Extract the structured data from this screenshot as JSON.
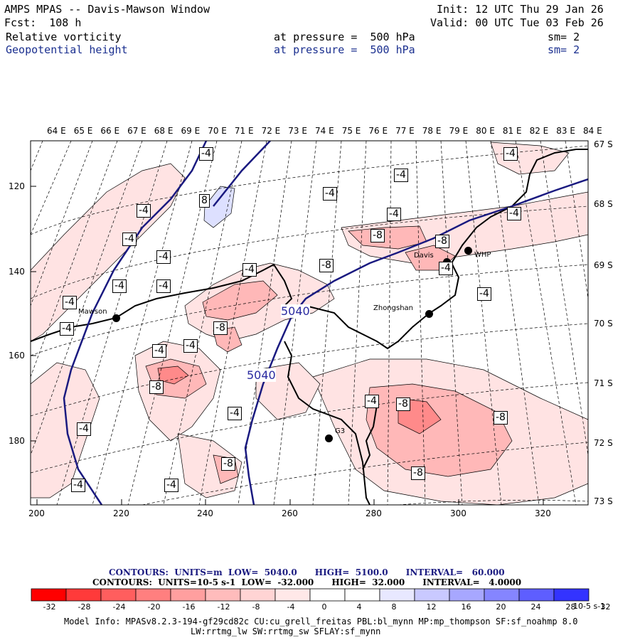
{
  "header": {
    "title": "AMPS MPAS -- Davis-Mawson Window",
    "init": "Init: 12 UTC Thu 29 Jan 26",
    "fcst": "Fcst:  108 h",
    "valid": "Valid: 00 UTC Tue 03 Feb 26",
    "field1": {
      "name": "Relative vorticity",
      "pressure": "at pressure =  500 hPa",
      "sm": "sm= 2"
    },
    "field2": {
      "name": "Geopotential height",
      "pressure": "at pressure =  500 hPa",
      "sm": "sm= 2"
    }
  },
  "axes": {
    "top_lon_labels": [
      "64 E",
      "65 E",
      "66 E",
      "67 E",
      "68 E",
      "69 E",
      "70 E",
      "71 E",
      "72 E",
      "73 E",
      "74 E",
      "75 E",
      "76 E",
      "77 E",
      "78 E",
      "79 E",
      "80 E",
      "81 E",
      "82 E",
      "83 E",
      "84 E"
    ],
    "right_lat_labels": [
      "67 S",
      "68 S",
      "69 S",
      "70 S",
      "71 S",
      "72 S",
      "73 S"
    ],
    "bottom_x_labels": [
      "200",
      "220",
      "240",
      "260",
      "280",
      "300",
      "320"
    ],
    "left_y_labels": [
      "120",
      "140",
      "160",
      "180"
    ]
  },
  "stations": [
    {
      "name": "Mawson"
    },
    {
      "name": "Davis"
    },
    {
      "name": "WHP"
    },
    {
      "name": "Zhongshan"
    },
    {
      "name": "G3"
    }
  ],
  "contour_labels": {
    "height": [
      "5040",
      "5040"
    ],
    "vorticity": [
      "-4",
      "-4",
      "-4",
      "-4",
      "-4",
      "-4",
      "-4",
      "-4",
      "-4",
      "-4",
      "-4",
      "-4",
      "-4",
      "-4",
      "-4",
      "-4",
      "-4",
      "-4",
      "-4",
      "-4",
      "-4",
      "-4",
      "-4",
      "-8",
      "-8",
      "-8",
      "-8",
      "-8",
      "-8",
      "-8",
      "-8",
      "-8",
      "8"
    ]
  },
  "legend": {
    "height_line": "CONTOURS:  UNITS=m  LOW=  5040.0      HIGH=  5100.0      INTERVAL=   60.000",
    "vort_line": "CONTOURS:  UNITS=10-5 s-1  LOW=  -32.000      HIGH=  32.000      INTERVAL=   4.0000",
    "colorbar_ticks": [
      "-32",
      "-28",
      "-24",
      "-20",
      "-16",
      "-12",
      "-8",
      "-4",
      "0",
      "4",
      "8",
      "12",
      "16",
      "20",
      "24",
      "28",
      "32"
    ],
    "colorbar_unit": "10-5 s-1",
    "colorbar_colors": [
      "#ff0000",
      "#ff3a3a",
      "#ff5e5e",
      "#ff7f7f",
      "#ff9f9f",
      "#ffbcbc",
      "#ffd4d4",
      "#ffe8e8",
      "#ffffff",
      "#ffffff",
      "#e8e8ff",
      "#c9c9ff",
      "#a7a7ff",
      "#8585ff",
      "#5e5eff",
      "#3333ff"
    ]
  },
  "footer": {
    "line1": "Model Info: MPASv8.2.3-194-gf29cd82c CU:cu_grell_freitas PBL:bl_mynn MP:mp_thompson SF:sf_noahmp 8.0",
    "line2": "LW:rrtmg_lw SW:rrtmg_sw SFLAY:sf_mynn"
  }
}
